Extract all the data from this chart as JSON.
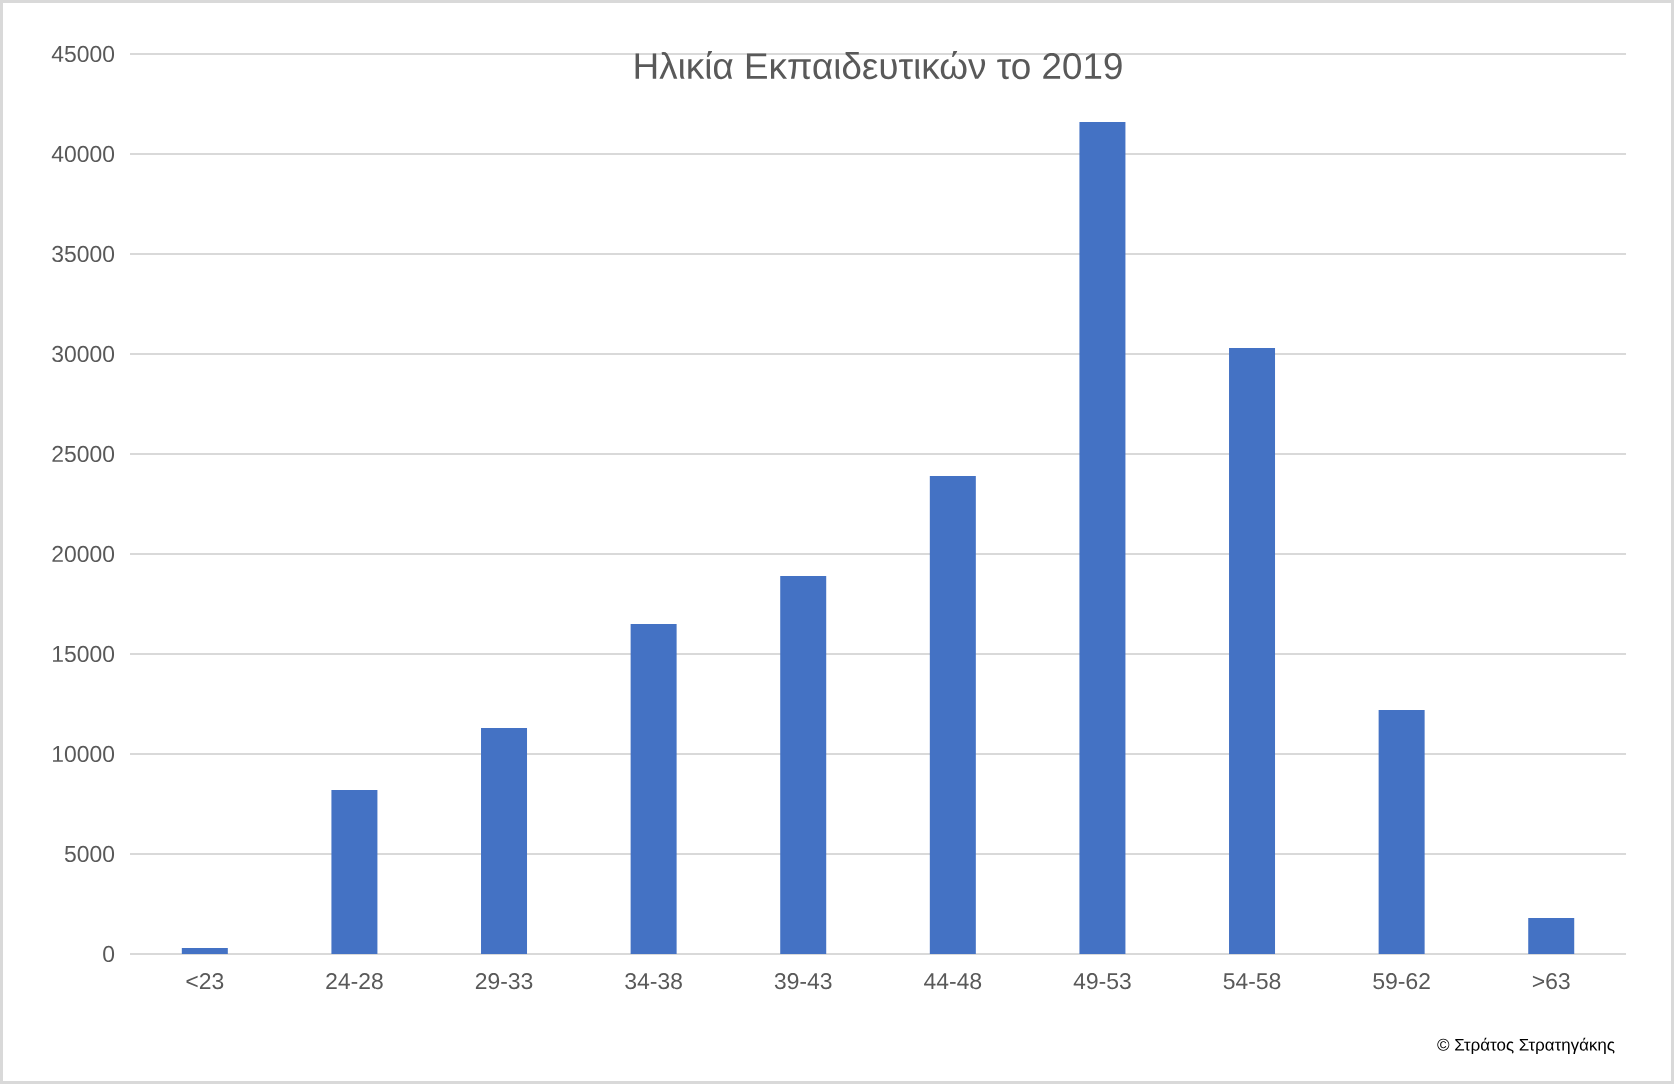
{
  "chart_data": {
    "type": "bar",
    "title": "Ηλικία Εκπαιδευτικών το 2019",
    "categories": [
      "<23",
      "24-28",
      "29-33",
      "34-38",
      "39-43",
      "44-48",
      "49-53",
      "54-58",
      "59-62",
      ">63"
    ],
    "values": [
      300,
      8200,
      11300,
      16500,
      18900,
      23900,
      41600,
      30300,
      12200,
      1800
    ],
    "color": "#4472c4",
    "ylim": [
      0,
      45000
    ],
    "yticks": [
      0,
      5000,
      10000,
      15000,
      20000,
      25000,
      30000,
      35000,
      40000,
      45000
    ],
    "grid": "y",
    "annotations": [
      "© Στράτος Στρατηγάκης"
    ]
  }
}
